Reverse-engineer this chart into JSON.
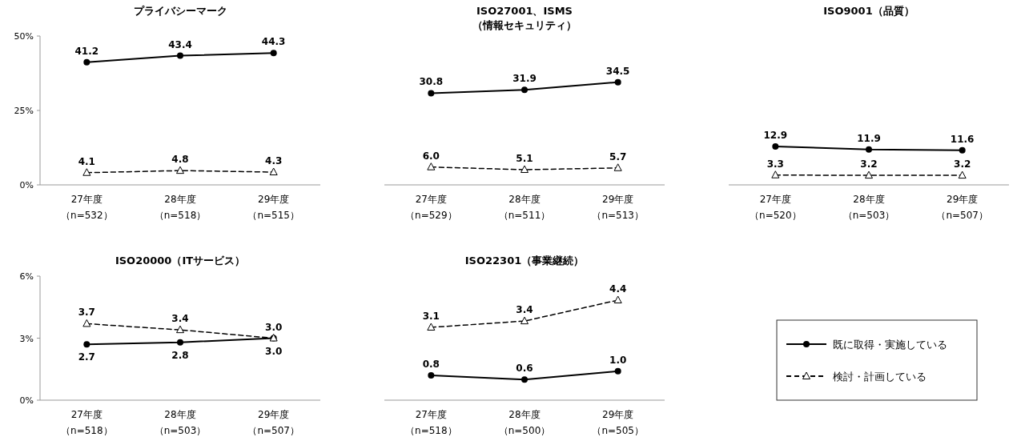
{
  "chart_data": [
    {
      "type": "line",
      "title": "プライバシーマーク",
      "categories": [
        "27年度（n=532）",
        "28年度（n=518）",
        "29年度（n=515）"
      ],
      "ylim": [
        0,
        50
      ],
      "yticks": [
        {
          "value": 0,
          "label": "0%"
        },
        {
          "value": 25,
          "label": "25%"
        },
        {
          "value": 50,
          "label": "50%"
        }
      ],
      "series": [
        {
          "color": "#000000",
          "marker": "circle",
          "line_style": "solid",
          "values": [
            41.2,
            43.4,
            44.3
          ],
          "value_labels": [
            "41.2",
            "43.4",
            "44.3"
          ]
        },
        {
          "color": "#000000",
          "marker": "triangle",
          "line_style": "dashed",
          "values": [
            4.1,
            4.8,
            4.3
          ],
          "value_labels": [
            "4.1",
            "4.8",
            "4.3"
          ]
        }
      ]
    },
    {
      "type": "line",
      "title": "ISO27001、ISMS\n（情報セキュリティ）",
      "categories": [
        "27年度（n=529）",
        "28年度（n=511）",
        "29年度（n=513）"
      ],
      "ylim": [
        0,
        50
      ],
      "tick_labels": "x",
      "series": [
        {
          "color": "#000000",
          "marker": "circle",
          "line_style": "solid",
          "values": [
            30.8,
            31.9,
            34.5
          ],
          "value_labels": [
            "30.8",
            "31.9",
            "34.5"
          ]
        },
        {
          "color": "#000000",
          "marker": "triangle",
          "line_style": "dashed",
          "values": [
            6.0,
            5.1,
            5.7
          ],
          "value_labels": [
            "6.0",
            "5.1",
            "5.7"
          ]
        }
      ]
    },
    {
      "type": "line",
      "title": "ISO9001（品質）",
      "categories": [
        "27年度（n=520）",
        "28年度（n=503）",
        "29年度（n=507）"
      ],
      "ylim": [
        0,
        50
      ],
      "tick_labels": "x",
      "series": [
        {
          "color": "#000000",
          "marker": "circle",
          "line_style": "solid",
          "values": [
            12.9,
            11.9,
            11.6
          ],
          "value_labels": [
            "12.9",
            "11.9",
            "11.6"
          ]
        },
        {
          "color": "#000000",
          "marker": "triangle",
          "line_style": "dashed",
          "values": [
            3.3,
            3.2,
            3.2
          ],
          "value_labels": [
            "3.3",
            "3.2",
            "3.2"
          ]
        }
      ]
    },
    {
      "type": "line",
      "title": "ISO20000（ITサービス）",
      "categories": [
        "27年度（n=518）",
        "28年度（n=503）",
        "29年度（n=507）"
      ],
      "ylim": [
        0,
        6
      ],
      "yticks": [
        {
          "value": 0,
          "label": "0%"
        },
        {
          "value": 3,
          "label": "3%"
        },
        {
          "value": 6,
          "label": "6%"
        }
      ],
      "series": [
        {
          "color": "#000000",
          "marker": "circle",
          "line_style": "solid",
          "values": [
            2.7,
            2.8,
            3.0
          ],
          "value_labels": [
            "2.7",
            "2.8",
            "3.0"
          ]
        },
        {
          "color": "#000000",
          "marker": "triangle",
          "line_style": "dashed",
          "values": [
            3.7,
            3.4,
            3.0
          ],
          "value_labels": [
            "3.7",
            "3.4",
            "3.0"
          ]
        }
      ]
    },
    {
      "type": "line",
      "title": "ISO22301（事業継続）",
      "categories": [
        "27年度（n=518）",
        "28年度（n=500）",
        "29年度（n=505）"
      ],
      "tick_labels": "x",
      "legend": "right",
      "series": [
        {
          "name": "既に取得・実施している",
          "color": "#000000",
          "marker": "circle",
          "line_style": "solid",
          "values": [
            0.8,
            0.6,
            1.0
          ],
          "value_labels": [
            "0.8",
            "0.6",
            "1.0"
          ]
        },
        {
          "name": "検討・計画している",
          "color": "#000000",
          "marker": "triangle",
          "line_style": "dashed",
          "values": [
            3.1,
            3.4,
            4.4
          ],
          "value_labels": [
            "3.1",
            "3.4",
            "4.4"
          ]
        }
      ]
    }
  ]
}
